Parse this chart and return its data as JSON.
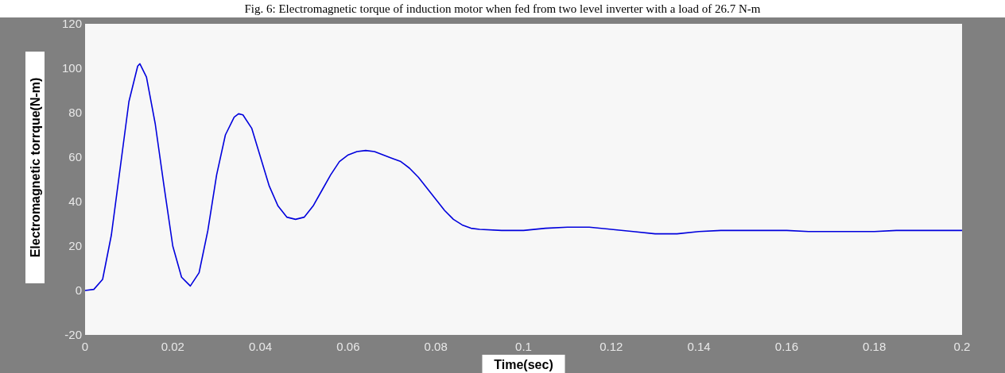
{
  "chart_data": {
    "type": "line",
    "title": "Fig. 6: Electromagnetic torque of induction motor when fed from two level inverter with a load of 26.7 N-m",
    "xlabel": "Time(sec)",
    "ylabel": "Electromagnetic torrque(N-m)",
    "xlim": [
      0,
      0.2
    ],
    "ylim": [
      -20,
      120
    ],
    "xticks": [
      0,
      0.02,
      0.04,
      0.06,
      0.08,
      0.1,
      0.12,
      0.14,
      0.16,
      0.18,
      0.2
    ],
    "yticks": [
      -20,
      0,
      20,
      40,
      60,
      80,
      100,
      120
    ],
    "series": [
      {
        "color": "#0000dd",
        "x": [
          0,
          0.002,
          0.004,
          0.006,
          0.008,
          0.01,
          0.012,
          0.0125,
          0.014,
          0.016,
          0.018,
          0.02,
          0.022,
          0.024,
          0.026,
          0.028,
          0.03,
          0.032,
          0.034,
          0.035,
          0.036,
          0.038,
          0.04,
          0.042,
          0.044,
          0.046,
          0.048,
          0.05,
          0.052,
          0.054,
          0.056,
          0.058,
          0.06,
          0.062,
          0.064,
          0.066,
          0.068,
          0.07,
          0.072,
          0.074,
          0.076,
          0.078,
          0.08,
          0.082,
          0.084,
          0.086,
          0.088,
          0.09,
          0.095,
          0.1,
          0.105,
          0.11,
          0.115,
          0.12,
          0.125,
          0.13,
          0.135,
          0.14,
          0.145,
          0.15,
          0.155,
          0.16,
          0.165,
          0.17,
          0.175,
          0.18,
          0.185,
          0.19,
          0.195,
          0.2
        ],
        "values": [
          0,
          0.5,
          5,
          25,
          55,
          85,
          101,
          102,
          96,
          75,
          47,
          20,
          6,
          2,
          8,
          27,
          52,
          70,
          78,
          79.5,
          79,
          73,
          60,
          47,
          38,
          33,
          32,
          33,
          38,
          45,
          52,
          58,
          61,
          62.5,
          63,
          62.5,
          61,
          59.5,
          58,
          55,
          51,
          46,
          41,
          36,
          32,
          29.5,
          28,
          27.5,
          27,
          27,
          28,
          28.5,
          28.5,
          27.5,
          26.5,
          25.5,
          25.5,
          26.5,
          27,
          27,
          27,
          27,
          26.5,
          26.5,
          26.5,
          26.5,
          27,
          27,
          27,
          27
        ]
      }
    ]
  }
}
